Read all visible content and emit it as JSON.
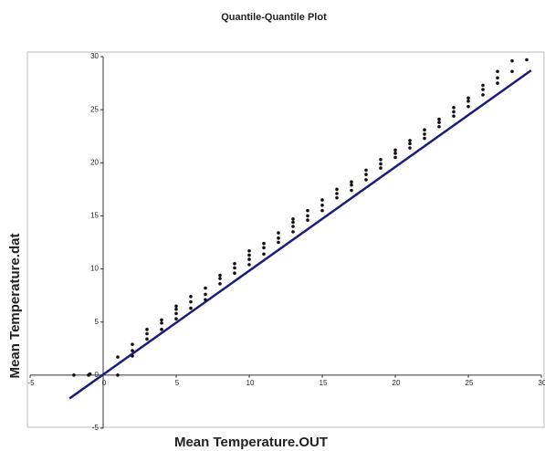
{
  "chart_data": {
    "type": "scatter",
    "title": "Quantile-Quantile Plot",
    "xlabel": "Mean Temperature.OUT",
    "ylabel": "Mean Temperature.dat",
    "x": [
      -2,
      -1,
      -0.9,
      1,
      1,
      2,
      2,
      2,
      3,
      3,
      3,
      4,
      4,
      4,
      5,
      5,
      5,
      5,
      6,
      6,
      6,
      7,
      7,
      7,
      8,
      8,
      8,
      9,
      9,
      9,
      10,
      10,
      10,
      10,
      11,
      11,
      11,
      12,
      12,
      12,
      13,
      13,
      13,
      13,
      14,
      14,
      14,
      15,
      15,
      15,
      16,
      16,
      16,
      17,
      17,
      17,
      18,
      18,
      18,
      19,
      19,
      19,
      20,
      20,
      20,
      21,
      21,
      21,
      22,
      22,
      22,
      23,
      23,
      23,
      24,
      24,
      24,
      25,
      25,
      25,
      26,
      26,
      26,
      27,
      27,
      27,
      28,
      28,
      29
    ],
    "values": [
      0,
      0,
      0.1,
      0,
      1.7,
      1.8,
      2.3,
      2.9,
      3.4,
      3.9,
      4.3,
      4.3,
      4.9,
      5.2,
      5.3,
      5.8,
      6.2,
      6.5,
      6.3,
      6.9,
      7.4,
      7.1,
      7.6,
      8.2,
      8.6,
      9.1,
      9.4,
      9.6,
      10.1,
      10.5,
      10.4,
      10.9,
      11.3,
      11.7,
      11.4,
      12,
      12.4,
      12.5,
      12.9,
      13.4,
      13.5,
      14,
      14.4,
      14.7,
      14.6,
      15,
      15.5,
      15.5,
      16,
      16.5,
      16.7,
      17.1,
      17.5,
      17.4,
      17.9,
      18.2,
      18.4,
      18.9,
      19.3,
      19.5,
      19.9,
      20.3,
      20.5,
      20.9,
      21.2,
      21.4,
      21.8,
      22.1,
      22.3,
      22.7,
      23.1,
      23.4,
      23.8,
      24.1,
      24.4,
      24.8,
      25.2,
      25.3,
      25.8,
      26.1,
      26.4,
      26.9,
      27.3,
      27.5,
      28,
      28.6,
      28.6,
      29.6,
      29.7
    ],
    "color": "#111111",
    "reference_line": {
      "x": [
        -2.3,
        29.3
      ],
      "y": [
        -2.2,
        28.7
      ],
      "color": "#1c1c7c"
    },
    "xlim": [
      -5,
      30
    ],
    "ylim": [
      -5,
      30
    ],
    "xticks": [
      -5,
      0,
      5,
      10,
      15,
      20,
      25,
      30
    ],
    "yticks": [
      -5,
      0,
      5,
      10,
      15,
      20,
      25,
      30
    ]
  }
}
